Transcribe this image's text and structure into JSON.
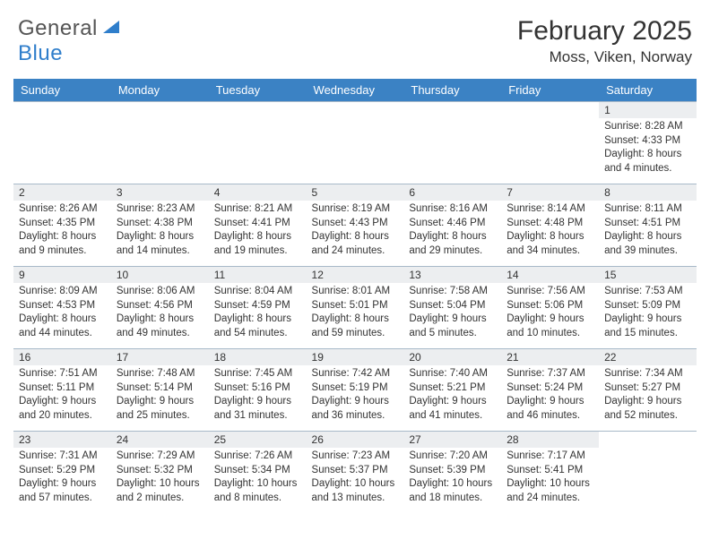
{
  "logo": {
    "word1": "General",
    "word2": "Blue"
  },
  "title": "February 2025",
  "location": "Moss, Viken, Norway",
  "colors": {
    "header_bg": "#3b82c4",
    "header_text": "#ffffff",
    "daynum_bg": "#eceef0",
    "row_border": "#a8b9c8",
    "logo_gray": "#555555",
    "logo_blue": "#2f7ecb",
    "text": "#333333",
    "page_bg": "#ffffff"
  },
  "day_headers": [
    "Sunday",
    "Monday",
    "Tuesday",
    "Wednesday",
    "Thursday",
    "Friday",
    "Saturday"
  ],
  "weeks": [
    [
      {
        "n": "",
        "sr": "",
        "ss": "",
        "dl": ""
      },
      {
        "n": "",
        "sr": "",
        "ss": "",
        "dl": ""
      },
      {
        "n": "",
        "sr": "",
        "ss": "",
        "dl": ""
      },
      {
        "n": "",
        "sr": "",
        "ss": "",
        "dl": ""
      },
      {
        "n": "",
        "sr": "",
        "ss": "",
        "dl": ""
      },
      {
        "n": "",
        "sr": "",
        "ss": "",
        "dl": ""
      },
      {
        "n": "1",
        "sr": "Sunrise: 8:28 AM",
        "ss": "Sunset: 4:33 PM",
        "dl": "Daylight: 8 hours and 4 minutes."
      }
    ],
    [
      {
        "n": "2",
        "sr": "Sunrise: 8:26 AM",
        "ss": "Sunset: 4:35 PM",
        "dl": "Daylight: 8 hours and 9 minutes."
      },
      {
        "n": "3",
        "sr": "Sunrise: 8:23 AM",
        "ss": "Sunset: 4:38 PM",
        "dl": "Daylight: 8 hours and 14 minutes."
      },
      {
        "n": "4",
        "sr": "Sunrise: 8:21 AM",
        "ss": "Sunset: 4:41 PM",
        "dl": "Daylight: 8 hours and 19 minutes."
      },
      {
        "n": "5",
        "sr": "Sunrise: 8:19 AM",
        "ss": "Sunset: 4:43 PM",
        "dl": "Daylight: 8 hours and 24 minutes."
      },
      {
        "n": "6",
        "sr": "Sunrise: 8:16 AM",
        "ss": "Sunset: 4:46 PM",
        "dl": "Daylight: 8 hours and 29 minutes."
      },
      {
        "n": "7",
        "sr": "Sunrise: 8:14 AM",
        "ss": "Sunset: 4:48 PM",
        "dl": "Daylight: 8 hours and 34 minutes."
      },
      {
        "n": "8",
        "sr": "Sunrise: 8:11 AM",
        "ss": "Sunset: 4:51 PM",
        "dl": "Daylight: 8 hours and 39 minutes."
      }
    ],
    [
      {
        "n": "9",
        "sr": "Sunrise: 8:09 AM",
        "ss": "Sunset: 4:53 PM",
        "dl": "Daylight: 8 hours and 44 minutes."
      },
      {
        "n": "10",
        "sr": "Sunrise: 8:06 AM",
        "ss": "Sunset: 4:56 PM",
        "dl": "Daylight: 8 hours and 49 minutes."
      },
      {
        "n": "11",
        "sr": "Sunrise: 8:04 AM",
        "ss": "Sunset: 4:59 PM",
        "dl": "Daylight: 8 hours and 54 minutes."
      },
      {
        "n": "12",
        "sr": "Sunrise: 8:01 AM",
        "ss": "Sunset: 5:01 PM",
        "dl": "Daylight: 8 hours and 59 minutes."
      },
      {
        "n": "13",
        "sr": "Sunrise: 7:58 AM",
        "ss": "Sunset: 5:04 PM",
        "dl": "Daylight: 9 hours and 5 minutes."
      },
      {
        "n": "14",
        "sr": "Sunrise: 7:56 AM",
        "ss": "Sunset: 5:06 PM",
        "dl": "Daylight: 9 hours and 10 minutes."
      },
      {
        "n": "15",
        "sr": "Sunrise: 7:53 AM",
        "ss": "Sunset: 5:09 PM",
        "dl": "Daylight: 9 hours and 15 minutes."
      }
    ],
    [
      {
        "n": "16",
        "sr": "Sunrise: 7:51 AM",
        "ss": "Sunset: 5:11 PM",
        "dl": "Daylight: 9 hours and 20 minutes."
      },
      {
        "n": "17",
        "sr": "Sunrise: 7:48 AM",
        "ss": "Sunset: 5:14 PM",
        "dl": "Daylight: 9 hours and 25 minutes."
      },
      {
        "n": "18",
        "sr": "Sunrise: 7:45 AM",
        "ss": "Sunset: 5:16 PM",
        "dl": "Daylight: 9 hours and 31 minutes."
      },
      {
        "n": "19",
        "sr": "Sunrise: 7:42 AM",
        "ss": "Sunset: 5:19 PM",
        "dl": "Daylight: 9 hours and 36 minutes."
      },
      {
        "n": "20",
        "sr": "Sunrise: 7:40 AM",
        "ss": "Sunset: 5:21 PM",
        "dl": "Daylight: 9 hours and 41 minutes."
      },
      {
        "n": "21",
        "sr": "Sunrise: 7:37 AM",
        "ss": "Sunset: 5:24 PM",
        "dl": "Daylight: 9 hours and 46 minutes."
      },
      {
        "n": "22",
        "sr": "Sunrise: 7:34 AM",
        "ss": "Sunset: 5:27 PM",
        "dl": "Daylight: 9 hours and 52 minutes."
      }
    ],
    [
      {
        "n": "23",
        "sr": "Sunrise: 7:31 AM",
        "ss": "Sunset: 5:29 PM",
        "dl": "Daylight: 9 hours and 57 minutes."
      },
      {
        "n": "24",
        "sr": "Sunrise: 7:29 AM",
        "ss": "Sunset: 5:32 PM",
        "dl": "Daylight: 10 hours and 2 minutes."
      },
      {
        "n": "25",
        "sr": "Sunrise: 7:26 AM",
        "ss": "Sunset: 5:34 PM",
        "dl": "Daylight: 10 hours and 8 minutes."
      },
      {
        "n": "26",
        "sr": "Sunrise: 7:23 AM",
        "ss": "Sunset: 5:37 PM",
        "dl": "Daylight: 10 hours and 13 minutes."
      },
      {
        "n": "27",
        "sr": "Sunrise: 7:20 AM",
        "ss": "Sunset: 5:39 PM",
        "dl": "Daylight: 10 hours and 18 minutes."
      },
      {
        "n": "28",
        "sr": "Sunrise: 7:17 AM",
        "ss": "Sunset: 5:41 PM",
        "dl": "Daylight: 10 hours and 24 minutes."
      },
      {
        "n": "",
        "sr": "",
        "ss": "",
        "dl": ""
      }
    ]
  ]
}
